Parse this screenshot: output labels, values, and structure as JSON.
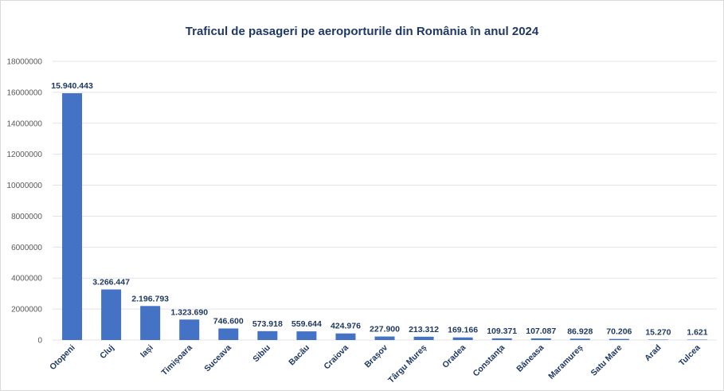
{
  "chart_data": {
    "type": "bar",
    "title": "Traficul de pasageri pe aeroporturile din România în anul 2024",
    "xlabel": "",
    "ylabel": "",
    "ylim": [
      0,
      18000000
    ],
    "yticks": [
      0,
      2000000,
      4000000,
      6000000,
      8000000,
      10000000,
      12000000,
      14000000,
      16000000,
      18000000
    ],
    "ytick_labels": [
      "0",
      "2000000",
      "4000000",
      "6000000",
      "8000000",
      "10000000",
      "12000000",
      "14000000",
      "16000000",
      "18000000"
    ],
    "grid": true,
    "legend": "none",
    "bar_color": "#4472c4",
    "categories": [
      "Otopeni",
      "Cluj",
      "Iași",
      "Timișoara",
      "Suceava",
      "Sibiu",
      "Bacău",
      "Craiova",
      "Brașov",
      "Târgu Mureș",
      "Oradea",
      "Constanța",
      "Băneasa",
      "Maramureș",
      "Satu Mare",
      "Arad",
      "Tulcea"
    ],
    "values": [
      15940443,
      3266447,
      2196793,
      1323690,
      746600,
      573918,
      559644,
      424976,
      227900,
      213312,
      169166,
      109371,
      107087,
      86928,
      70206,
      15270,
      1621
    ],
    "data_labels": [
      "15.940.443",
      "3.266.447",
      "2.196.793",
      "1.323.690",
      "746.600",
      "573.918",
      "559.644",
      "424.976",
      "227.900",
      "213.312",
      "169.166",
      "109.371",
      "107.087",
      "86.928",
      "70.206",
      "15.270",
      "1.621"
    ]
  }
}
